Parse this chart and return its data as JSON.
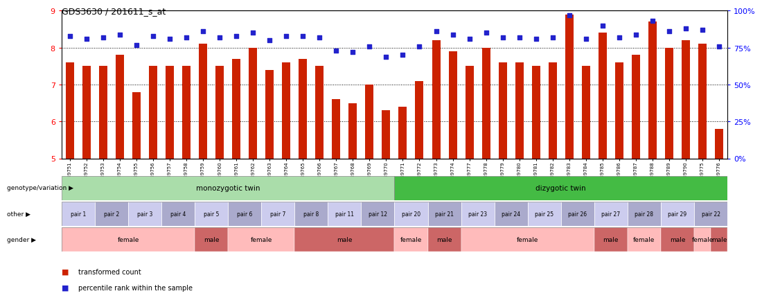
{
  "title": "GDS3630 / 201611_s_at",
  "samples": [
    "GSM189751",
    "GSM189752",
    "GSM189753",
    "GSM189754",
    "GSM189755",
    "GSM189756",
    "GSM189757",
    "GSM189758",
    "GSM189759",
    "GSM189760",
    "GSM189761",
    "GSM189762",
    "GSM189763",
    "GSM189764",
    "GSM189765",
    "GSM189766",
    "GSM189767",
    "GSM189768",
    "GSM189769",
    "GSM189770",
    "GSM189771",
    "GSM189772",
    "GSM189773",
    "GSM189774",
    "GSM189777",
    "GSM189778",
    "GSM189779",
    "GSM189780",
    "GSM189781",
    "GSM189782",
    "GSM189783",
    "GSM189784",
    "GSM189785",
    "GSM189786",
    "GSM189787",
    "GSM189788",
    "GSM189789",
    "GSM189790",
    "GSM189775",
    "GSM189776"
  ],
  "bar_values": [
    7.6,
    7.5,
    7.5,
    7.8,
    6.8,
    7.5,
    7.5,
    7.5,
    8.1,
    7.5,
    7.7,
    8.0,
    7.4,
    7.6,
    7.7,
    7.5,
    6.6,
    6.5,
    7.0,
    6.3,
    6.4,
    7.1,
    8.2,
    7.9,
    7.5,
    8.0,
    7.6,
    7.6,
    7.5,
    7.6,
    8.9,
    7.5,
    8.4,
    7.6,
    7.8,
    8.7,
    8.0,
    8.2,
    8.1,
    5.8
  ],
  "percentile_values": [
    83,
    81,
    82,
    84,
    77,
    83,
    81,
    82,
    86,
    82,
    83,
    85,
    80,
    83,
    83,
    82,
    73,
    72,
    76,
    69,
    70,
    76,
    86,
    84,
    81,
    85,
    82,
    82,
    81,
    82,
    97,
    81,
    90,
    82,
    84,
    93,
    86,
    88,
    87,
    76
  ],
  "ylim": [
    5,
    9
  ],
  "yticks_left": [
    5,
    6,
    7,
    8,
    9
  ],
  "yticks_right": [
    0,
    25,
    50,
    75,
    100
  ],
  "bar_color": "#cc2200",
  "dot_color": "#2222cc",
  "mono_light": "#aaddaa",
  "mono_dark": "#55bb55",
  "diz_dark": "#44bb44",
  "pair_light": "#ccccee",
  "pair_dark": "#aaaacc",
  "female_color": "#ffbbbb",
  "male_color": "#cc6666",
  "dotted_yticks": [
    6,
    7,
    8
  ],
  "pair_groups": [
    [
      0,
      1,
      "pair 1"
    ],
    [
      2,
      3,
      "pair 2"
    ],
    [
      4,
      5,
      "pair 3"
    ],
    [
      6,
      7,
      "pair 4"
    ],
    [
      8,
      9,
      "pair 5"
    ],
    [
      10,
      11,
      "pair 6"
    ],
    [
      12,
      13,
      "pair 7"
    ],
    [
      14,
      15,
      "pair 8"
    ],
    [
      16,
      17,
      "pair 11"
    ],
    [
      18,
      19,
      "pair 12"
    ],
    [
      20,
      21,
      "pair 20"
    ],
    [
      22,
      23,
      "pair 21"
    ],
    [
      24,
      25,
      "pair 23"
    ],
    [
      26,
      27,
      "pair 24"
    ],
    [
      28,
      29,
      "pair 25"
    ],
    [
      30,
      31,
      "pair 26"
    ],
    [
      32,
      33,
      "pair 27"
    ],
    [
      34,
      35,
      "pair 28"
    ],
    [
      36,
      37,
      "pair 29"
    ],
    [
      38,
      39,
      "pair 22"
    ]
  ],
  "gender_groups": [
    [
      0,
      7,
      "female"
    ],
    [
      8,
      9,
      "male"
    ],
    [
      10,
      13,
      "female"
    ],
    [
      14,
      15,
      "male"
    ],
    [
      16,
      19,
      "male"
    ],
    [
      20,
      21,
      "female"
    ],
    [
      22,
      23,
      "male"
    ],
    [
      24,
      31,
      "female"
    ],
    [
      32,
      33,
      "male"
    ],
    [
      34,
      35,
      "female"
    ],
    [
      36,
      37,
      "male"
    ],
    [
      38,
      38,
      "female"
    ],
    [
      39,
      39,
      "male"
    ]
  ]
}
